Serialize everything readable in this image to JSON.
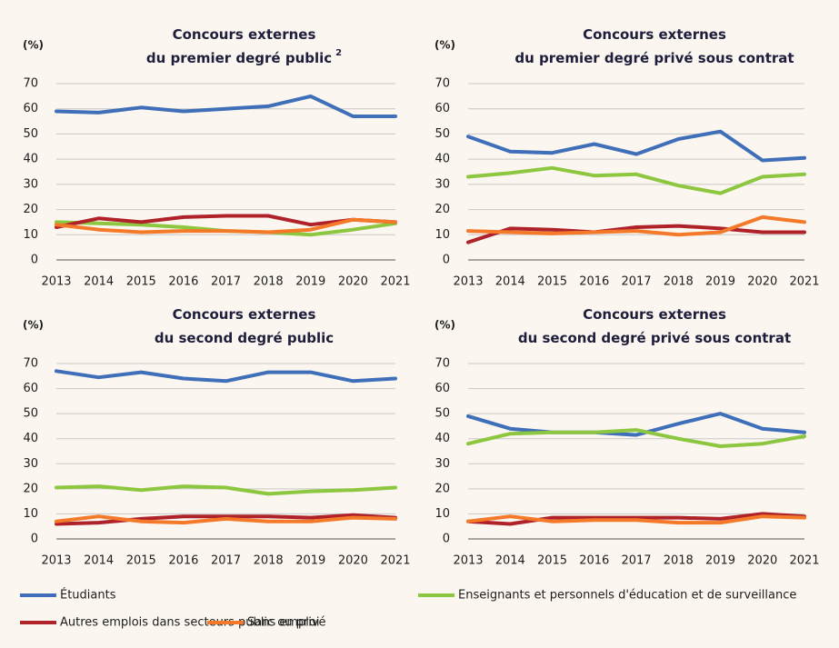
{
  "chart_data": [
    {
      "type": "line",
      "title": [
        "Concours externes",
        "du premier degré public"
      ],
      "title_note": "2",
      "y_label": "(%)",
      "categories": [
        "2013",
        "2014",
        "2015",
        "2016",
        "2017",
        "2018",
        "2019",
        "2020",
        "2021"
      ],
      "ylim": [
        0,
        70
      ],
      "yticks": [
        0,
        10,
        20,
        30,
        40,
        50,
        60,
        70
      ],
      "grid": true,
      "series": [
        {
          "name": "Étudiants",
          "color": "#3f6fb9",
          "values": [
            59,
            58.5,
            60.5,
            59,
            60,
            61,
            65,
            57,
            57
          ]
        },
        {
          "name": "Enseignants et personnels d'éducation et de surveillance",
          "color": "#8dc63f",
          "values": [
            15,
            14.5,
            14,
            13,
            11.5,
            11,
            10,
            12,
            14.5
          ]
        },
        {
          "name": "Autres emplois dans secteurs public ou privé",
          "color": "#b0222a",
          "values": [
            13,
            16.5,
            15,
            17,
            17.5,
            17.5,
            14,
            16,
            15
          ]
        },
        {
          "name": "Sans emploi",
          "color": "#f47a2a",
          "values": [
            14,
            12,
            11,
            11.5,
            11.5,
            11,
            12,
            16,
            15
          ]
        }
      ]
    },
    {
      "type": "line",
      "title": [
        "Concours externes",
        "du premier degré privé sous contrat"
      ],
      "y_label": "(%)",
      "categories": [
        "2013",
        "2014",
        "2015",
        "2016",
        "2017",
        "2018",
        "2019",
        "2020",
        "2021"
      ],
      "ylim": [
        0,
        70
      ],
      "yticks": [
        0,
        10,
        20,
        30,
        40,
        50,
        60,
        70
      ],
      "grid": true,
      "series": [
        {
          "color": "#3f6fb9",
          "values": [
            49,
            43,
            42.5,
            46,
            42,
            48,
            51,
            39.5,
            40.5
          ]
        },
        {
          "color": "#8dc63f",
          "values": [
            33,
            34.5,
            36.5,
            33.5,
            34,
            29.5,
            26.5,
            33,
            34
          ]
        },
        {
          "color": "#b0222a",
          "values": [
            7,
            12.5,
            12,
            11,
            13,
            13.5,
            12.5,
            11,
            11
          ]
        },
        {
          "color": "#f47a2a",
          "values": [
            11.5,
            11,
            10.5,
            11,
            11.5,
            10,
            11,
            17,
            15
          ]
        }
      ]
    },
    {
      "type": "line",
      "title": [
        "Concours externes",
        "du second degré public"
      ],
      "y_label": "(%)",
      "categories": [
        "2013",
        "2014",
        "2015",
        "2016",
        "2017",
        "2018",
        "2019",
        "2020",
        "2021"
      ],
      "ylim": [
        0,
        70
      ],
      "yticks": [
        0,
        10,
        20,
        30,
        40,
        50,
        60,
        70
      ],
      "grid": true,
      "series": [
        {
          "color": "#3f6fb9",
          "values": [
            67,
            64.5,
            66.5,
            64,
            63,
            66.5,
            66.5,
            63,
            64
          ]
        },
        {
          "color": "#8dc63f",
          "values": [
            20.5,
            21,
            19.5,
            21,
            20.5,
            18,
            19,
            19.5,
            20.5
          ]
        },
        {
          "color": "#b0222a",
          "values": [
            6,
            6.5,
            8,
            9,
            9,
            9,
            8.5,
            9.5,
            8.5
          ]
        },
        {
          "color": "#f47a2a",
          "values": [
            7,
            9,
            7,
            6.5,
            8,
            7,
            7,
            8.5,
            8
          ]
        }
      ]
    },
    {
      "type": "line",
      "title": [
        "Concours externes",
        "du second degré privé sous contrat"
      ],
      "y_label": "(%)",
      "categories": [
        "2013",
        "2014",
        "2015",
        "2016",
        "2017",
        "2018",
        "2019",
        "2020",
        "2021"
      ],
      "ylim": [
        0,
        70
      ],
      "yticks": [
        0,
        10,
        20,
        30,
        40,
        50,
        60,
        70
      ],
      "grid": true,
      "series": [
        {
          "color": "#3f6fb9",
          "values": [
            49,
            44,
            42.5,
            42.5,
            41.5,
            46,
            50,
            44,
            42.5
          ]
        },
        {
          "color": "#8dc63f",
          "values": [
            38,
            42,
            42.5,
            42.5,
            43.5,
            40,
            37,
            38,
            41
          ]
        },
        {
          "color": "#b0222a",
          "values": [
            7,
            6,
            8.5,
            8.5,
            8.5,
            8.5,
            8,
            10,
            9
          ]
        },
        {
          "color": "#f47a2a",
          "values": [
            7,
            9,
            7,
            7.5,
            7.5,
            6.5,
            6.5,
            9,
            8.5
          ]
        }
      ]
    }
  ]
}
